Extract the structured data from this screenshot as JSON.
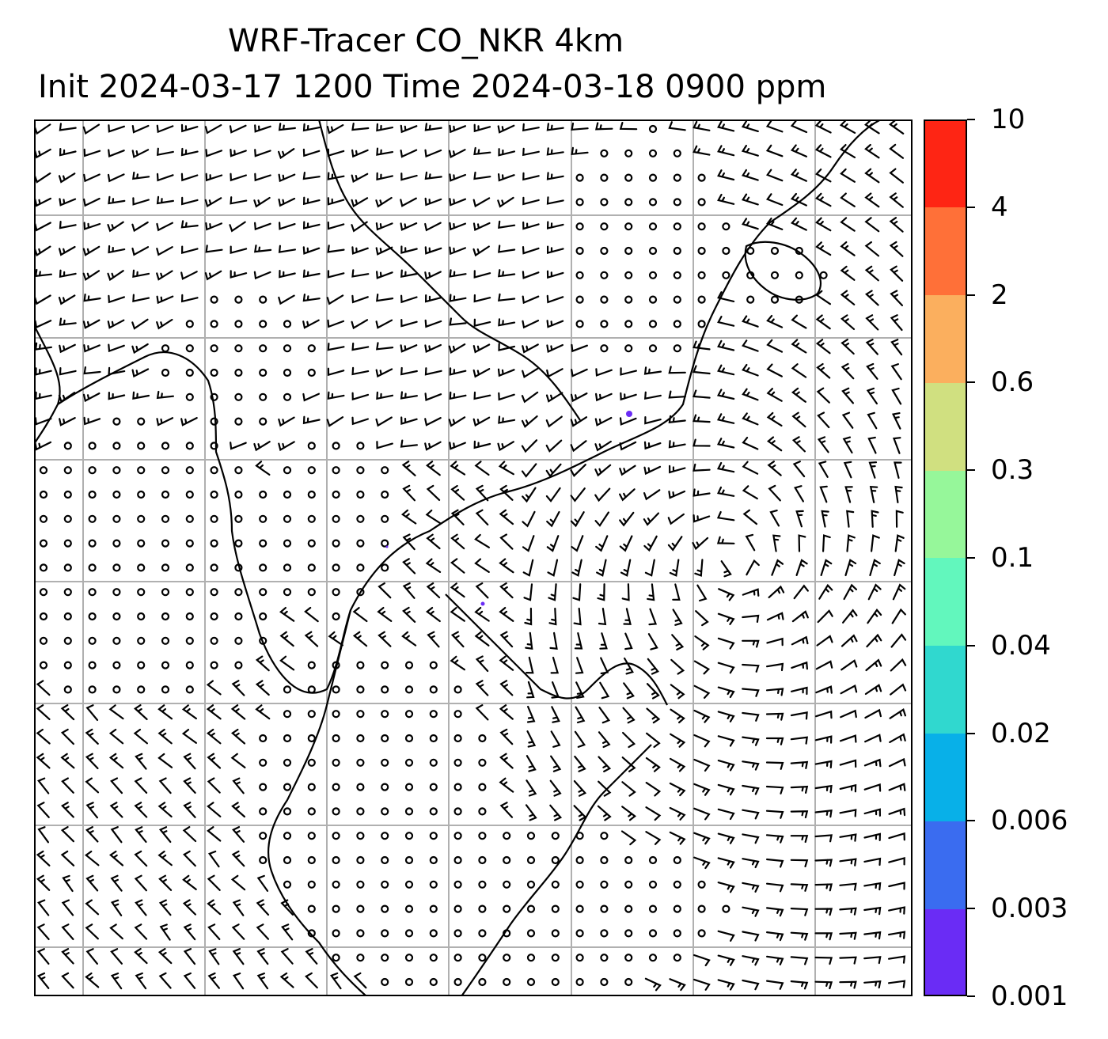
{
  "title": {
    "line1": "WRF-Tracer CO_NKR 4km",
    "line2": "Init 2024-03-17 1200 Time 2024-03-18 0900 ppm"
  },
  "map": {
    "gridlines": "on",
    "wind_barbs": "on",
    "coastlines": "on",
    "tracer_plume_color": "#6a2cf5"
  },
  "colorbar": {
    "orientation": "vertical",
    "position": "right",
    "levels": [
      "0.001",
      "0.003",
      "0.006",
      "0.02",
      "0.04",
      "0.1",
      "0.3",
      "0.6",
      "2",
      "4",
      "10"
    ],
    "colors": [
      "#6a2cf5",
      "#3a6cf0",
      "#08b0e8",
      "#30d8cf",
      "#62f7bd",
      "#96f79a",
      "#d0e080",
      "#fbaf5e",
      "#ff7038",
      "#fe2514"
    ]
  }
}
